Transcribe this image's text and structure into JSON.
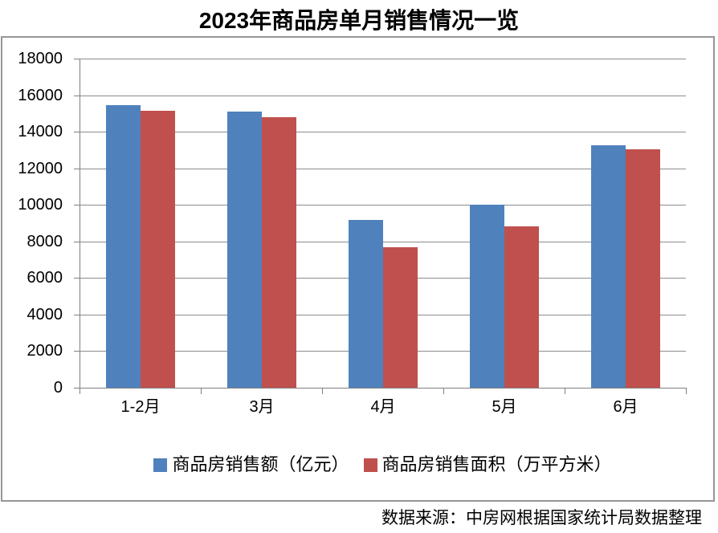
{
  "page": {
    "source_note": "数据来源：中房网根据国家统计局数据整理"
  },
  "chart_data": {
    "type": "bar",
    "title": "2023年商品房单月销售情况一览",
    "categories": [
      "1-2月",
      "3月",
      "4月",
      "5月",
      "6月"
    ],
    "series": [
      {
        "name": "商品房销售额（亿元）",
        "color": "#4F81BD",
        "values": [
          15449,
          15096,
          9175,
          10029,
          13276
        ]
      },
      {
        "name": "商品房销售面积（万平方米）",
        "color": "#C0504D",
        "values": [
          15133,
          14813,
          7691,
          8804,
          13021
        ]
      }
    ],
    "xlabel": "",
    "ylabel": "",
    "ylim": [
      0,
      18000
    ],
    "y_tick_step": 2000,
    "y_tick_labels": [
      "0",
      "2000",
      "4000",
      "6000",
      "8000",
      "10000",
      "12000",
      "14000",
      "16000",
      "18000"
    ],
    "grid": true,
    "legend_position": "bottom"
  },
  "colors": {
    "series_blue": "#4F81BD",
    "series_red": "#C0504D",
    "gridline": "#8C8C8C",
    "axis": "#808080",
    "frame_border": "#969696",
    "text": "#000000"
  }
}
